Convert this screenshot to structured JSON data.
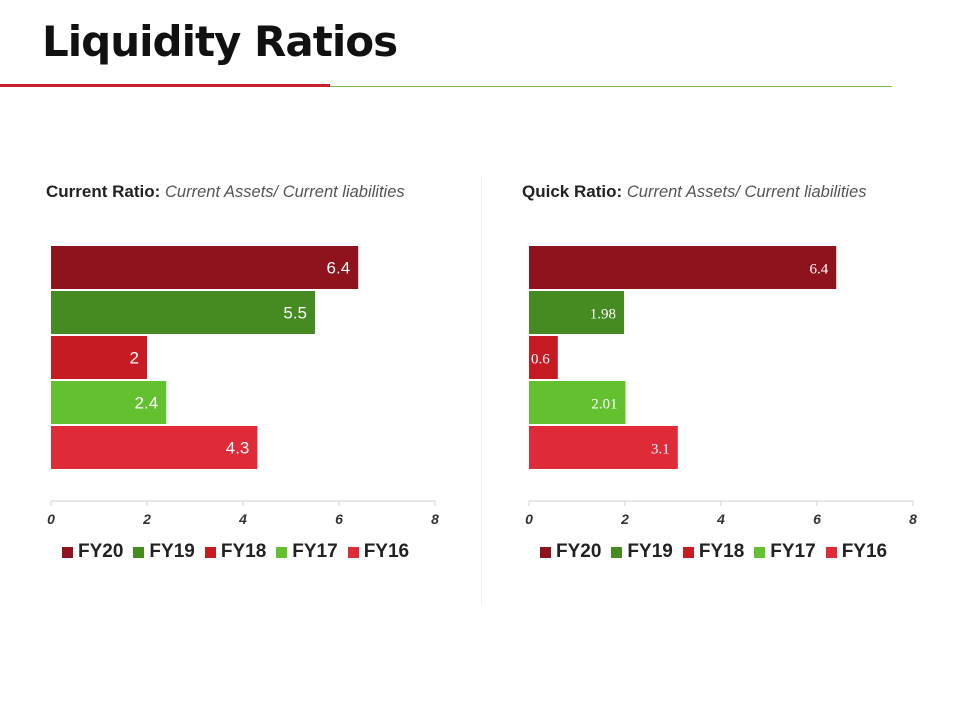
{
  "page": {
    "title": "Liquidity Ratios"
  },
  "colors": {
    "rule_red": "#c8202b",
    "rule_green": "#7cbd45",
    "FY20": "#8e131c",
    "FY19": "#468b22",
    "FY18": "#c71b23",
    "FY17": "#63c02f",
    "FY16": "#de2b37",
    "axis": "#d0d0d0"
  },
  "chart_data": [
    {
      "type": "bar",
      "orientation": "horizontal",
      "title": "Current Ratio:",
      "subtitle": "Current Assets/ Current liabilities",
      "categories": [
        "FY20",
        "FY19",
        "FY18",
        "FY17",
        "FY16"
      ],
      "values": [
        6.4,
        5.5,
        2,
        2.4,
        4.3
      ],
      "labels": [
        "6.4",
        "5.5",
        "2",
        "2.4",
        "4.3"
      ],
      "xlim": [
        0,
        8
      ],
      "xticks": [
        "0",
        "2",
        "4",
        "6",
        "8"
      ],
      "legend": [
        "FY20",
        "FY19",
        "FY18",
        "FY17",
        "FY16"
      ],
      "legend_position": "bottom",
      "grid": false
    },
    {
      "type": "bar",
      "orientation": "horizontal",
      "title": "Quick Ratio:",
      "subtitle": "Current Assets/ Current liabilities",
      "categories": [
        "FY20",
        "FY19",
        "FY18",
        "FY17",
        "FY16"
      ],
      "values": [
        6.4,
        1.98,
        0.6,
        2.01,
        3.1
      ],
      "labels": [
        "6.4",
        "1.98",
        "0.6",
        "2.01",
        "3.1"
      ],
      "xlim": [
        0,
        8
      ],
      "xticks": [
        "0",
        "2",
        "4",
        "6",
        "8"
      ],
      "legend": [
        "FY20",
        "FY19",
        "FY18",
        "FY17",
        "FY16"
      ],
      "legend_position": "bottom",
      "grid": false
    }
  ]
}
